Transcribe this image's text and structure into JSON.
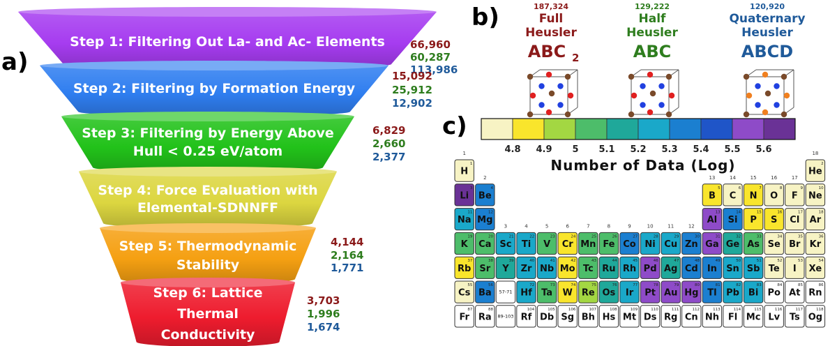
{
  "panel_labels": {
    "a": "a)",
    "b": "b)",
    "c": "c)"
  },
  "colors": {
    "full": "#8b1a1a",
    "half": "#2e7d1e",
    "quaternary": "#1f5a9a"
  },
  "funnel": {
    "steps": [
      {
        "lines": [
          "Step 1: Filtering Out La- and Ac- Elements"
        ],
        "counts": [
          "66,960",
          "60,287",
          "113,986"
        ],
        "color": "#a63cf0"
      },
      {
        "lines": [
          "Step 2: Filtering by Formation Energy"
        ],
        "counts": [
          "15,092",
          "25,912",
          "12,902"
        ],
        "color": "#2f7ef0"
      },
      {
        "lines": [
          "Step 3: Filtering by Energy Above",
          "Hull < 0.25 eV/atom"
        ],
        "counts": [
          "6,829",
          "2,660",
          "2,377"
        ],
        "color": "#22c21a"
      },
      {
        "lines": [
          "Step 4: Force Evaluation with",
          "Elemental-SDNNFF"
        ],
        "counts": [],
        "color": "#dcd640"
      },
      {
        "lines": [
          "Step 5: Thermodynamic",
          "Stability"
        ],
        "counts": [
          "4,144",
          "2,164",
          "1,771"
        ],
        "color": "#f5a012"
      },
      {
        "lines": [
          "Step 6: Lattice",
          "Thermal",
          "Conductivity"
        ],
        "counts": [
          "3,703",
          "1,996",
          "1,674"
        ],
        "color": "#ee1c2e"
      }
    ]
  },
  "heusler": [
    {
      "count": "187,324",
      "name1": "Full",
      "name2": "Heusler",
      "formula": "ABC",
      "sub": "2",
      "key": "full",
      "atoms": [
        "#7a4a2a",
        "#e02020",
        "#2040e0"
      ]
    },
    {
      "count": "129,222",
      "name1": "Half",
      "name2": "Heusler",
      "formula": "ABC",
      "sub": "",
      "key": "half",
      "atoms": [
        "#7a4a2a",
        "#e02020",
        "#2040e0"
      ]
    },
    {
      "count": "120,920",
      "name1": "Quaternary",
      "name2": "Heusler",
      "formula": "ABCD",
      "sub": "",
      "key": "quaternary",
      "atoms": [
        "#7a4a2a",
        "#f08020",
        "#2040e0"
      ]
    }
  ],
  "colorbar": {
    "label": "Number of Data (Log)",
    "ticks": [
      "4.8",
      "4.9",
      "5",
      "5.1",
      "5.2",
      "5.3",
      "5.4",
      "5.5",
      "5.6"
    ],
    "colors": [
      "#f7f3c4",
      "#f9e52c",
      "#a3d742",
      "#4dbd6a",
      "#1fa89a",
      "#1aa8c9",
      "#1b7fd0",
      "#1f55c8",
      "#8e4bc8",
      "#6a3296"
    ]
  },
  "periodic_table": {
    "groups": [
      "1",
      "2",
      "3",
      "4",
      "5",
      "6",
      "7",
      "8",
      "9",
      "10",
      "11",
      "12",
      "13",
      "14",
      "15",
      "16",
      "17",
      "18"
    ],
    "elements": [
      {
        "s": "H",
        "n": "1",
        "r": 1,
        "c": 1,
        "v": 0
      },
      {
        "s": "He",
        "n": "2",
        "r": 1,
        "c": 18,
        "v": 0
      },
      {
        "s": "Li",
        "n": "3",
        "r": 2,
        "c": 1,
        "v": 9
      },
      {
        "s": "Be",
        "n": "4",
        "r": 2,
        "c": 2,
        "v": 6
      },
      {
        "s": "B",
        "n": "5",
        "r": 2,
        "c": 13,
        "v": 1
      },
      {
        "s": "C",
        "n": "6",
        "r": 2,
        "c": 14,
        "v": 0
      },
      {
        "s": "N",
        "n": "7",
        "r": 2,
        "c": 15,
        "v": 1
      },
      {
        "s": "O",
        "n": "8",
        "r": 2,
        "c": 16,
        "v": 0
      },
      {
        "s": "F",
        "n": "9",
        "r": 2,
        "c": 17,
        "v": 0
      },
      {
        "s": "Ne",
        "n": "10",
        "r": 2,
        "c": 18,
        "v": 0
      },
      {
        "s": "Na",
        "n": "11",
        "r": 3,
        "c": 1,
        "v": 5
      },
      {
        "s": "Mg",
        "n": "12",
        "r": 3,
        "c": 2,
        "v": 6
      },
      {
        "s": "Al",
        "n": "13",
        "r": 3,
        "c": 13,
        "v": 8
      },
      {
        "s": "Si",
        "n": "14",
        "r": 3,
        "c": 14,
        "v": 6
      },
      {
        "s": "P",
        "n": "15",
        "r": 3,
        "c": 15,
        "v": 1
      },
      {
        "s": "S",
        "n": "16",
        "r": 3,
        "c": 16,
        "v": 1
      },
      {
        "s": "Cl",
        "n": "17",
        "r": 3,
        "c": 17,
        "v": 0
      },
      {
        "s": "Ar",
        "n": "18",
        "r": 3,
        "c": 18,
        "v": 0
      },
      {
        "s": "K",
        "n": "19",
        "r": 4,
        "c": 1,
        "v": 3
      },
      {
        "s": "Ca",
        "n": "20",
        "r": 4,
        "c": 2,
        "v": 3
      },
      {
        "s": "Sc",
        "n": "21",
        "r": 4,
        "c": 3,
        "v": 5
      },
      {
        "s": "Ti",
        "n": "22",
        "r": 4,
        "c": 4,
        "v": 5
      },
      {
        "s": "V",
        "n": "23",
        "r": 4,
        "c": 5,
        "v": 3
      },
      {
        "s": "Cr",
        "n": "24",
        "r": 4,
        "c": 6,
        "v": 1
      },
      {
        "s": "Mn",
        "n": "25",
        "r": 4,
        "c": 7,
        "v": 3
      },
      {
        "s": "Fe",
        "n": "26",
        "r": 4,
        "c": 8,
        "v": 3
      },
      {
        "s": "Co",
        "n": "27",
        "r": 4,
        "c": 9,
        "v": 6
      },
      {
        "s": "Ni",
        "n": "28",
        "r": 4,
        "c": 10,
        "v": 5
      },
      {
        "s": "Cu",
        "n": "29",
        "r": 4,
        "c": 11,
        "v": 5
      },
      {
        "s": "Zn",
        "n": "30",
        "r": 4,
        "c": 12,
        "v": 6
      },
      {
        "s": "Ga",
        "n": "31",
        "r": 4,
        "c": 13,
        "v": 8
      },
      {
        "s": "Ge",
        "n": "32",
        "r": 4,
        "c": 14,
        "v": 4
      },
      {
        "s": "As",
        "n": "33",
        "r": 4,
        "c": 15,
        "v": 3
      },
      {
        "s": "Se",
        "n": "34",
        "r": 4,
        "c": 16,
        "v": 0
      },
      {
        "s": "Br",
        "n": "35",
        "r": 4,
        "c": 17,
        "v": 0
      },
      {
        "s": "Kr",
        "n": "36",
        "r": 4,
        "c": 18,
        "v": 0
      },
      {
        "s": "Rb",
        "n": "37",
        "r": 5,
        "c": 1,
        "v": 1
      },
      {
        "s": "Sr",
        "n": "38",
        "r": 5,
        "c": 2,
        "v": 3
      },
      {
        "s": "Y",
        "n": "39",
        "r": 5,
        "c": 3,
        "v": 4
      },
      {
        "s": "Zr",
        "n": "40",
        "r": 5,
        "c": 4,
        "v": 5
      },
      {
        "s": "Nb",
        "n": "41",
        "r": 5,
        "c": 5,
        "v": 5
      },
      {
        "s": "Mo",
        "n": "42",
        "r": 5,
        "c": 6,
        "v": 1
      },
      {
        "s": "Tc",
        "n": "43",
        "r": 5,
        "c": 7,
        "v": 3
      },
      {
        "s": "Ru",
        "n": "44",
        "r": 5,
        "c": 8,
        "v": 4
      },
      {
        "s": "Rh",
        "n": "45",
        "r": 5,
        "c": 9,
        "v": 5
      },
      {
        "s": "Pd",
        "n": "46",
        "r": 5,
        "c": 10,
        "v": 8
      },
      {
        "s": "Ag",
        "n": "47",
        "r": 5,
        "c": 11,
        "v": 4
      },
      {
        "s": "Cd",
        "n": "48",
        "r": 5,
        "c": 12,
        "v": 6
      },
      {
        "s": "In",
        "n": "49",
        "r": 5,
        "c": 13,
        "v": 6
      },
      {
        "s": "Sn",
        "n": "50",
        "r": 5,
        "c": 14,
        "v": 5
      },
      {
        "s": "Sb",
        "n": "51",
        "r": 5,
        "c": 15,
        "v": 5
      },
      {
        "s": "Te",
        "n": "52",
        "r": 5,
        "c": 16,
        "v": 0
      },
      {
        "s": "I",
        "n": "53",
        "r": 5,
        "c": 17,
        "v": 0
      },
      {
        "s": "Xe",
        "n": "54",
        "r": 5,
        "c": 18,
        "v": 0
      },
      {
        "s": "Cs",
        "n": "55",
        "r": 6,
        "c": 1,
        "v": 0
      },
      {
        "s": "Ba",
        "n": "56",
        "r": 6,
        "c": 2,
        "v": 6
      },
      {
        "s": "57-71",
        "n": "",
        "r": 6,
        "c": 3,
        "v": -1
      },
      {
        "s": "Hf",
        "n": "72",
        "r": 6,
        "c": 4,
        "v": 5
      },
      {
        "s": "Ta",
        "n": "73",
        "r": 6,
        "c": 5,
        "v": 3
      },
      {
        "s": "W",
        "n": "74",
        "r": 6,
        "c": 6,
        "v": 1
      },
      {
        "s": "Re",
        "n": "75",
        "r": 6,
        "c": 7,
        "v": 2
      },
      {
        "s": "Os",
        "n": "76",
        "r": 6,
        "c": 8,
        "v": 4
      },
      {
        "s": "Ir",
        "n": "77",
        "r": 6,
        "c": 9,
        "v": 5
      },
      {
        "s": "Pt",
        "n": "78",
        "r": 6,
        "c": 10,
        "v": 8
      },
      {
        "s": "Au",
        "n": "79",
        "r": 6,
        "c": 11,
        "v": 8
      },
      {
        "s": "Hg",
        "n": "80",
        "r": 6,
        "c": 12,
        "v": 8
      },
      {
        "s": "Tl",
        "n": "81",
        "r": 6,
        "c": 13,
        "v": 6
      },
      {
        "s": "Pb",
        "n": "82",
        "r": 6,
        "c": 14,
        "v": 5
      },
      {
        "s": "Bi",
        "n": "83",
        "r": 6,
        "c": 15,
        "v": 5
      },
      {
        "s": "Po",
        "n": "84",
        "r": 6,
        "c": 16,
        "v": -1
      },
      {
        "s": "At",
        "n": "85",
        "r": 6,
        "c": 17,
        "v": -1
      },
      {
        "s": "Rn",
        "n": "86",
        "r": 6,
        "c": 18,
        "v": -1
      },
      {
        "s": "Fr",
        "n": "87",
        "r": 7,
        "c": 1,
        "v": -1
      },
      {
        "s": "Ra",
        "n": "88",
        "r": 7,
        "c": 2,
        "v": -1
      },
      {
        "s": "89-103",
        "n": "",
        "r": 7,
        "c": 3,
        "v": -1
      },
      {
        "s": "Rf",
        "n": "104",
        "r": 7,
        "c": 4,
        "v": -1
      },
      {
        "s": "Db",
        "n": "105",
        "r": 7,
        "c": 5,
        "v": -1
      },
      {
        "s": "Sg",
        "n": "106",
        "r": 7,
        "c": 6,
        "v": -1
      },
      {
        "s": "Bh",
        "n": "107",
        "r": 7,
        "c": 7,
        "v": -1
      },
      {
        "s": "Hs",
        "n": "108",
        "r": 7,
        "c": 8,
        "v": -1
      },
      {
        "s": "Mt",
        "n": "109",
        "r": 7,
        "c": 9,
        "v": -1
      },
      {
        "s": "Ds",
        "n": "110",
        "r": 7,
        "c": 10,
        "v": -1
      },
      {
        "s": "Rg",
        "n": "111",
        "r": 7,
        "c": 11,
        "v": -1
      },
      {
        "s": "Cn",
        "n": "112",
        "r": 7,
        "c": 12,
        "v": -1
      },
      {
        "s": "Nh",
        "n": "113",
        "r": 7,
        "c": 13,
        "v": -1
      },
      {
        "s": "Fl",
        "n": "114",
        "r": 7,
        "c": 14,
        "v": -1
      },
      {
        "s": "Mc",
        "n": "115",
        "r": 7,
        "c": 15,
        "v": -1
      },
      {
        "s": "Lv",
        "n": "116",
        "r": 7,
        "c": 16,
        "v": -1
      },
      {
        "s": "Ts",
        "n": "117",
        "r": 7,
        "c": 17,
        "v": -1
      },
      {
        "s": "Og",
        "n": "118",
        "r": 7,
        "c": 18,
        "v": -1
      }
    ]
  }
}
